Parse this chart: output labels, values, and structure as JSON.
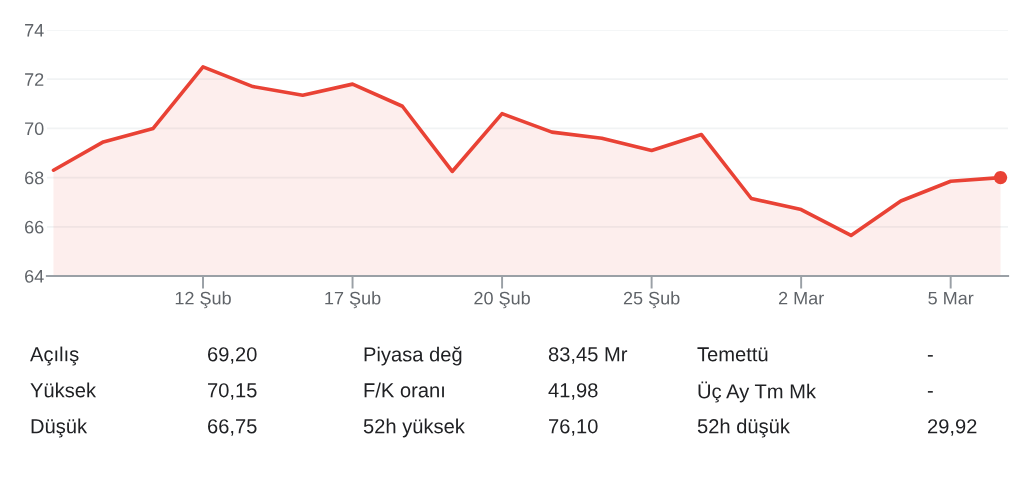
{
  "chart_data": {
    "type": "area",
    "categories": [
      null,
      null,
      null,
      "12 Şub",
      null,
      null,
      "17 Şub",
      null,
      null,
      "20 Şub",
      null,
      null,
      "25 Şub",
      null,
      null,
      "2 Mar",
      null,
      null,
      "5 Mar",
      null
    ],
    "series": [
      {
        "color": "#e94235",
        "values": [
          68.3,
          69.45,
          70.0,
          72.5,
          71.7,
          71.35,
          71.8,
          70.9,
          68.25,
          70.6,
          69.85,
          69.6,
          69.1,
          69.75,
          67.15,
          66.7,
          65.65,
          67.05,
          67.85,
          68.0
        ]
      },
      {
        "type": "scatter",
        "color": "#e94235",
        "marker": "circle",
        "values": [
          null,
          null,
          null,
          null,
          null,
          null,
          null,
          null,
          null,
          null,
          null,
          null,
          null,
          null,
          null,
          null,
          null,
          null,
          null,
          68.0
        ]
      }
    ],
    "ylim": [
      64,
      74
    ],
    "yticks": [
      64,
      66,
      68,
      70,
      72,
      74
    ],
    "grid": "y",
    "annotations": [
      "Açılış",
      "69,20",
      "Piyasa değ",
      "83,45 Mr",
      "Temettü",
      "-",
      "Yüksek",
      "70,15",
      "F/K oranı",
      "41,98",
      "Üç Ay Tm Mk",
      "-",
      "Düşük",
      "66,75",
      "52h yüksek",
      "76,10",
      "52h düşük",
      "29,92"
    ]
  }
}
